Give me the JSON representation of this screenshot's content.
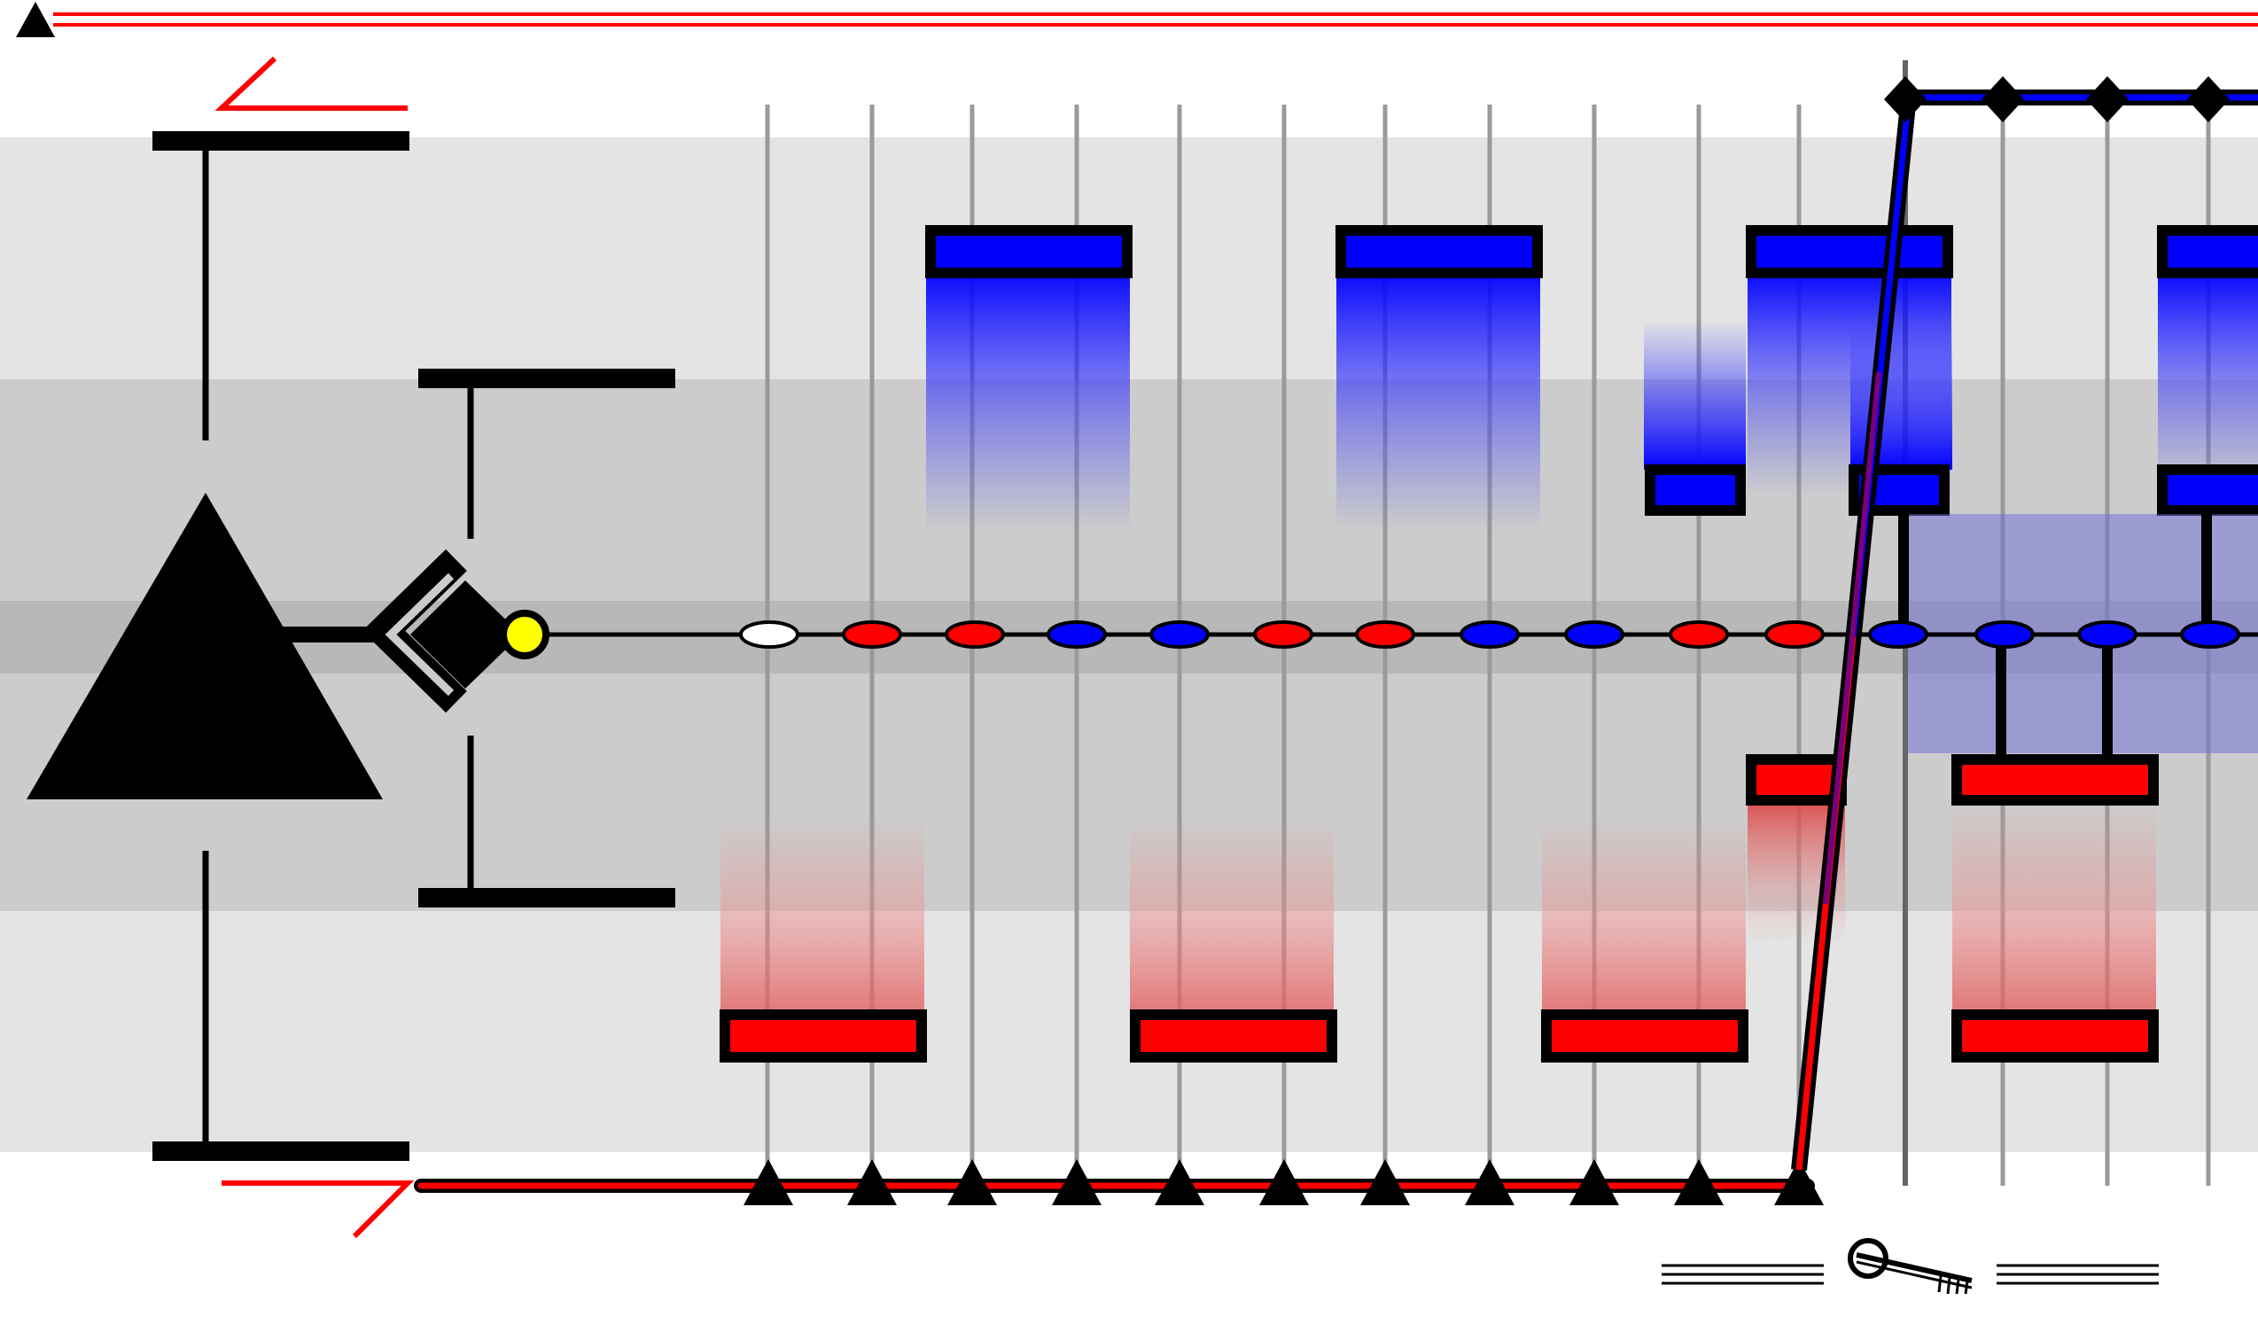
{
  "colors": {
    "band_light": "#e4e4e4",
    "band_mid": "#cccccc",
    "band_center": "#b8b8b8",
    "ink": "#000000",
    "red": "#ff0000",
    "blue": "#0000ff",
    "overlay_blue": "#6a6ad8",
    "lane_line": "#9a9a9a",
    "yellow": "#ffff00",
    "purple": "#7a007a"
  },
  "icons": {
    "big_node": "triangle-icon",
    "gate": "diamond-icon",
    "marker": "triangle-marker-icon",
    "key": "key-icon",
    "junction": "diamond-marker-icon"
  },
  "sequence_dots": [
    "white",
    "red",
    "red",
    "blue",
    "blue",
    "red",
    "red",
    "blue",
    "blue",
    "red",
    "red",
    "blue",
    "blue",
    "blue",
    "blue"
  ],
  "blue_blocks": 5,
  "red_blocks": 5,
  "bottom_markers": 11,
  "top_junctions": 4
}
